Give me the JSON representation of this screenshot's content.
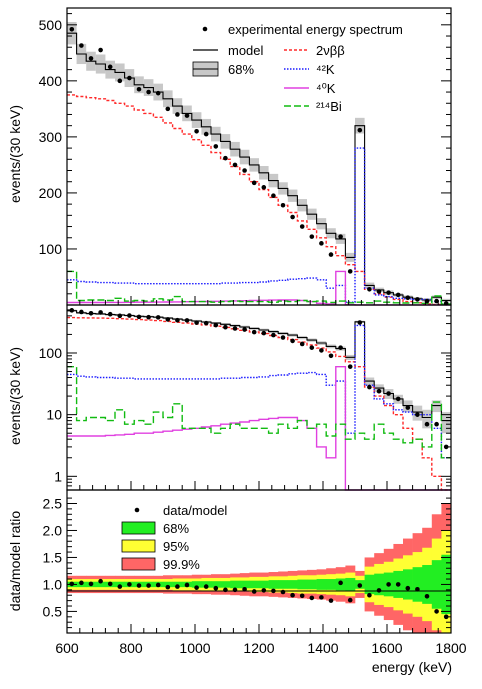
{
  "chart_data": [
    {
      "type": "line",
      "panel": "linear",
      "ylabel": "events/(30 keV)",
      "xlim": [
        600,
        1800
      ],
      "ylim": [
        0,
        530
      ],
      "yscale": "linear",
      "y_ticks": [
        "100",
        "200",
        "300",
        "400",
        "500"
      ],
      "x_bin_edges": [
        600,
        630,
        660,
        690,
        720,
        750,
        780,
        810,
        840,
        870,
        900,
        930,
        960,
        990,
        1020,
        1050,
        1080,
        1110,
        1140,
        1170,
        1200,
        1230,
        1260,
        1290,
        1320,
        1350,
        1380,
        1410,
        1440,
        1470,
        1500,
        1530,
        1560,
        1590,
        1620,
        1650,
        1680,
        1710,
        1740,
        1770,
        1800
      ],
      "legend": [
        {
          "label": "experimental energy spectrum",
          "style": "marker"
        },
        {
          "label": "model",
          "style": "line"
        },
        {
          "label": "68%",
          "style": "band"
        },
        {
          "label": "2νββ",
          "style": "dashed-red"
        },
        {
          "label": "⁴²K",
          "style": "dotted-blue"
        },
        {
          "label": "⁴⁰K",
          "style": "solid-magenta"
        },
        {
          "label": "²¹⁴Bi",
          "style": "dashed-green"
        }
      ],
      "series": [
        {
          "name": "experimental energy spectrum",
          "kind": "points",
          "x": [
            615,
            645,
            675,
            705,
            735,
            765,
            795,
            825,
            855,
            885,
            915,
            945,
            975,
            1005,
            1035,
            1065,
            1095,
            1125,
            1155,
            1185,
            1215,
            1245,
            1275,
            1305,
            1335,
            1365,
            1395,
            1425,
            1455,
            1485,
            1515,
            1545,
            1575,
            1605,
            1635,
            1665,
            1695,
            1725,
            1755,
            1785
          ],
          "values": [
            492,
            463,
            440,
            455,
            425,
            400,
            405,
            385,
            380,
            378,
            350,
            340,
            338,
            310,
            305,
            283,
            262,
            250,
            240,
            218,
            210,
            195,
            178,
            157,
            140,
            122,
            110,
            90,
            122,
            60,
            312,
            28,
            24,
            22,
            18,
            13,
            10,
            7,
            7,
            3
          ]
        },
        {
          "name": "model",
          "kind": "step",
          "values": [
            485,
            448,
            435,
            430,
            420,
            415,
            405,
            393,
            388,
            380,
            368,
            355,
            342,
            330,
            318,
            305,
            292,
            278,
            264,
            250,
            236,
            222,
            208,
            195,
            178,
            162,
            145,
            128,
            118,
            85,
            320,
            35,
            27,
            22,
            18,
            14,
            11,
            9,
            14,
            8
          ]
        },
        {
          "name": "68%",
          "kind": "band_halfwidth",
          "values": [
            20,
            18,
            17,
            17,
            16,
            16,
            16,
            15,
            15,
            15,
            15,
            14,
            14,
            14,
            14,
            13,
            13,
            13,
            13,
            12,
            12,
            12,
            11,
            11,
            11,
            10,
            10,
            9,
            9,
            8,
            14,
            5,
            4,
            4,
            3,
            3,
            3,
            3,
            3,
            3
          ]
        },
        {
          "name": "2νββ",
          "kind": "step",
          "values": [
            375,
            372,
            370,
            368,
            365,
            360,
            355,
            348,
            342,
            335,
            325,
            315,
            305,
            295,
            285,
            272,
            260,
            247,
            233,
            220,
            206,
            192,
            178,
            165,
            150,
            135,
            120,
            104,
            88,
            72,
            60,
            28,
            20,
            14,
            10,
            6,
            4,
            2,
            1,
            0.5
          ]
        },
        {
          "name": "⁴²K",
          "kind": "step",
          "values": [
            45,
            42,
            41,
            40,
            40,
            39,
            39,
            38,
            38,
            38,
            38,
            38,
            38,
            38,
            38,
            38,
            39,
            39,
            40,
            40,
            41,
            43,
            44,
            46,
            47,
            48,
            45,
            30,
            35,
            5,
            280,
            30,
            18,
            15,
            12,
            11,
            10,
            10,
            6,
            2
          ]
        },
        {
          "name": "⁴⁰K",
          "kind": "step",
          "values": [
            4.5,
            4.5,
            4.5,
            4.5,
            4.6,
            4.7,
            4.8,
            5,
            5,
            5.2,
            5.4,
            5.6,
            5.8,
            6,
            6.3,
            6.6,
            7,
            7.3,
            7.6,
            8,
            8.4,
            8.7,
            9,
            9,
            8,
            6,
            3,
            2,
            60,
            0.5,
            0.1,
            0.1,
            0.1,
            0.1,
            0.1,
            0.1,
            0.1,
            0.1,
            0.1,
            0.1
          ]
        },
        {
          "name": "²¹⁴Bi",
          "kind": "step",
          "values": [
            60,
            8,
            9,
            9,
            8,
            12,
            7,
            8,
            7,
            11,
            9,
            15,
            6,
            6,
            6,
            5,
            6,
            7,
            6,
            6,
            6,
            5,
            7,
            6,
            8,
            6,
            7,
            4.5,
            7,
            4,
            5,
            4,
            7,
            5,
            4,
            3.5,
            4,
            3,
            16,
            2
          ]
        }
      ]
    },
    {
      "type": "line",
      "panel": "log",
      "ylabel": "events/(30 keV)",
      "xlim": [
        600,
        1800
      ],
      "ylim": [
        0.6,
        600
      ],
      "yscale": "log",
      "y_ticks": [
        "1",
        "10",
        "100"
      ],
      "same_series_as_panel": 0
    },
    {
      "type": "bar",
      "panel": "ratio",
      "xlabel": "energy (keV)",
      "ylabel": "data/model ratio",
      "xlim": [
        600,
        1800
      ],
      "ylim": [
        0.1,
        2.75
      ],
      "x_ticks": [
        "600",
        "800",
        "1000",
        "1200",
        "1400",
        "1600",
        "1800"
      ],
      "y_ticks": [
        "0.5",
        "1.0",
        "1.5",
        "2.0",
        "2.5"
      ],
      "legend": [
        {
          "label": "data/model",
          "style": "marker"
        },
        {
          "label": "68%",
          "color": "#22ee22"
        },
        {
          "label": "95%",
          "color": "#ffff33"
        },
        {
          "label": "99.9%",
          "color": "#ff6666"
        }
      ],
      "series": [
        {
          "name": "data/model",
          "kind": "points",
          "values": [
            1.01,
            1.03,
            1.01,
            1.06,
            1.01,
            0.96,
            1.0,
            0.98,
            0.98,
            0.99,
            0.95,
            0.96,
            0.99,
            0.94,
            0.96,
            0.93,
            0.9,
            0.9,
            0.91,
            0.87,
            0.89,
            0.88,
            0.86,
            0.8,
            0.79,
            0.75,
            0.76,
            0.7,
            1.03,
            0.71,
            0.98,
            0.8,
            0.89,
            1.0,
            1.0,
            0.93,
            0.91,
            0.78,
            0.5,
            0.4
          ]
        },
        {
          "name": "68%",
          "kind": "band_halfwidth",
          "values": [
            0.05,
            0.05,
            0.05,
            0.05,
            0.05,
            0.05,
            0.05,
            0.05,
            0.05,
            0.05,
            0.05,
            0.05,
            0.05,
            0.06,
            0.06,
            0.06,
            0.06,
            0.07,
            0.07,
            0.07,
            0.07,
            0.08,
            0.08,
            0.08,
            0.09,
            0.09,
            0.1,
            0.1,
            0.11,
            0.12,
            0.08,
            0.18,
            0.2,
            0.22,
            0.25,
            0.28,
            0.32,
            0.36,
            0.45,
            0.55
          ]
        },
        {
          "name": "95%",
          "kind": "band_halfwidth",
          "values": [
            0.1,
            0.1,
            0.1,
            0.1,
            0.1,
            0.1,
            0.1,
            0.1,
            0.1,
            0.1,
            0.1,
            0.11,
            0.11,
            0.11,
            0.12,
            0.12,
            0.12,
            0.13,
            0.13,
            0.14,
            0.14,
            0.15,
            0.15,
            0.16,
            0.17,
            0.17,
            0.18,
            0.19,
            0.2,
            0.22,
            0.16,
            0.33,
            0.38,
            0.42,
            0.48,
            0.54,
            0.6,
            0.68,
            0.85,
            1.0
          ]
        },
        {
          "name": "99.9%",
          "kind": "band_halfwidth",
          "values": [
            0.16,
            0.16,
            0.16,
            0.16,
            0.16,
            0.16,
            0.16,
            0.16,
            0.16,
            0.16,
            0.17,
            0.17,
            0.17,
            0.18,
            0.18,
            0.19,
            0.19,
            0.2,
            0.21,
            0.22,
            0.22,
            0.23,
            0.24,
            0.25,
            0.26,
            0.27,
            0.28,
            0.3,
            0.32,
            0.35,
            0.25,
            0.5,
            0.58,
            0.66,
            0.75,
            0.85,
            0.95,
            1.05,
            1.3,
            1.5
          ]
        }
      ]
    }
  ],
  "colors": {
    "data": "#000000",
    "model": "#000000",
    "band68_top": "#c8c8c8",
    "two_nu_bb": "#ff2a2a",
    "k42": "#1a1aff",
    "k40": "#e040e0",
    "bi214": "#11bb11",
    "ratio_68": "#22ee22",
    "ratio_95": "#ffff33",
    "ratio_999": "#ff6666"
  }
}
